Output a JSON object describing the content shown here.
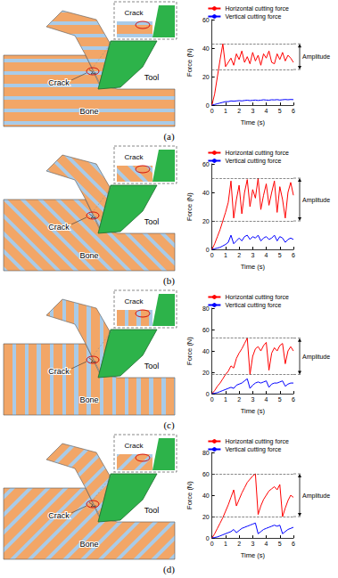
{
  "chart_data": [
    {
      "type": "line",
      "caption": "(a)",
      "diagram_labels": {
        "crack": "Crack",
        "inset_crack": "Crack",
        "tool": "Tool",
        "bone": "Bone"
      },
      "xlabel": "Time (s)",
      "ylabel": "Force (N)",
      "x": [
        0,
        0.2,
        0.4,
        0.6,
        0.8,
        1,
        1.2,
        1.4,
        1.6,
        1.8,
        2,
        2.2,
        2.4,
        2.6,
        2.8,
        3,
        3.2,
        3.4,
        3.6,
        3.8,
        4,
        4.2,
        4.4,
        4.6,
        4.8,
        5,
        5.2,
        5.4,
        5.6,
        5.8,
        6
      ],
      "series": [
        {
          "name": "Horizontal cutting force",
          "color": "#ff0000",
          "values": [
            0,
            8,
            20,
            32,
            43,
            27,
            30,
            33,
            28,
            36,
            32,
            38,
            30,
            34,
            29,
            37,
            31,
            35,
            28,
            36,
            33,
            38,
            30,
            29,
            36,
            32,
            37,
            31,
            35,
            33,
            30
          ]
        },
        {
          "name": "Vertical cutting force",
          "color": "#0000ff",
          "values": [
            0,
            0.5,
            1,
            1.5,
            2,
            2.5,
            2.5,
            3,
            2.8,
            3,
            3.2,
            3,
            3.3,
            3.5,
            3.2,
            3.4,
            3.6,
            3.3,
            3.5,
            3.8,
            3.6,
            3.5,
            3.8,
            3.7,
            3.9,
            3.6,
            3.8,
            4,
            3.8,
            4,
            3.9
          ]
        }
      ],
      "amplitude": {
        "text": "Amplitude",
        "range": [
          25,
          43
        ]
      },
      "xlim": [
        0,
        6
      ],
      "xticks": [
        0,
        1,
        2,
        3,
        4,
        5,
        6
      ],
      "ylim": [
        0,
        60
      ],
      "yticks": [
        0,
        20,
        40,
        60
      ],
      "legend": "upper right",
      "grid": false
    },
    {
      "type": "line",
      "caption": "(b)",
      "diagram_labels": {
        "crack": "Crack",
        "inset_crack": "Crack",
        "tool": "Tool",
        "bone": "Bone"
      },
      "xlabel": "Time (s)",
      "ylabel": "Force (N)",
      "x": [
        0,
        0.2,
        0.4,
        0.6,
        0.8,
        1,
        1.2,
        1.4,
        1.6,
        1.8,
        2,
        2.2,
        2.4,
        2.6,
        2.8,
        3,
        3.2,
        3.4,
        3.6,
        3.8,
        4,
        4.2,
        4.4,
        4.6,
        4.8,
        5,
        5.2,
        5.4,
        5.6,
        5.8,
        6
      ],
      "series": [
        {
          "name": "Horizontal cutting force",
          "color": "#ff0000",
          "values": [
            0,
            4,
            9,
            14,
            20,
            26,
            33,
            48,
            22,
            35,
            45,
            25,
            40,
            49,
            30,
            42,
            36,
            50,
            28,
            38,
            46,
            31,
            40,
            48,
            26,
            44,
            35,
            22,
            40,
            47,
            38
          ]
        },
        {
          "name": "Vertical cutting force",
          "color": "#0000ff",
          "values": [
            0,
            0.5,
            1,
            1.5,
            2.5,
            3.5,
            5,
            10,
            4,
            6,
            8,
            6,
            9,
            10,
            7,
            9,
            8,
            10,
            6,
            8,
            9,
            7,
            8,
            10,
            6,
            9,
            8,
            5,
            7,
            8,
            7
          ]
        }
      ],
      "amplitude": {
        "text": "Amplitude",
        "range": [
          20,
          50
        ]
      },
      "xlim": [
        0,
        6
      ],
      "xticks": [
        0,
        1,
        2,
        3,
        4,
        5,
        6
      ],
      "ylim": [
        0,
        60
      ],
      "yticks": [
        0,
        20,
        40,
        60
      ],
      "legend": "upper right",
      "grid": false
    },
    {
      "type": "line",
      "caption": "(c)",
      "diagram_labels": {
        "crack": "Crack",
        "inset_crack": "Crack",
        "tool": "Tool",
        "bone": "Bone"
      },
      "xlabel": "Time (s)",
      "ylabel": "Force (N)",
      "x": [
        0,
        0.2,
        0.4,
        0.6,
        0.8,
        1,
        1.2,
        1.4,
        1.6,
        1.8,
        2,
        2.2,
        2.4,
        2.6,
        2.8,
        3,
        3.2,
        3.4,
        3.6,
        3.8,
        4,
        4.2,
        4.4,
        4.6,
        4.8,
        5,
        5.2,
        5.4,
        5.6,
        5.8,
        6
      ],
      "series": [
        {
          "name": "Horizontal cutting force",
          "color": "#ff0000",
          "values": [
            0,
            3,
            7,
            10,
            14,
            18,
            21,
            26,
            24,
            33,
            38,
            42,
            47,
            52,
            18,
            35,
            42,
            44,
            40,
            45,
            48,
            22,
            38,
            43,
            40,
            45,
            47,
            28,
            40,
            44,
            40
          ]
        },
        {
          "name": "Vertical cutting force",
          "color": "#0000ff",
          "values": [
            0,
            0.5,
            1,
            2,
            3,
            4,
            5,
            6,
            5,
            8,
            9,
            10,
            12,
            14,
            5,
            8,
            10,
            11,
            10,
            11,
            12,
            6,
            9,
            10,
            10,
            11,
            12,
            7,
            9,
            10,
            10
          ]
        }
      ],
      "amplitude": {
        "text": "Amplitude",
        "range": [
          18,
          52
        ]
      },
      "xlim": [
        0,
        6
      ],
      "xticks": [
        0,
        1,
        2,
        3,
        4,
        5,
        6
      ],
      "ylim": [
        0,
        80
      ],
      "yticks": [
        0,
        20,
        40,
        60,
        80
      ],
      "legend": "upper right",
      "grid": false
    },
    {
      "type": "line",
      "caption": "(d)",
      "diagram_labels": {
        "crack": "Crack",
        "inset_crack": "Crack",
        "tool": "Tool",
        "bone": "Bone"
      },
      "xlabel": "Time (s)",
      "ylabel": "Force (N)",
      "x": [
        0,
        0.2,
        0.4,
        0.6,
        0.8,
        1,
        1.2,
        1.4,
        1.6,
        1.8,
        2,
        2.2,
        2.4,
        2.6,
        2.8,
        3,
        3.2,
        3.4,
        3.6,
        3.8,
        4,
        4.2,
        4.4,
        4.6,
        4.8,
        5,
        5.2,
        5.4,
        5.6,
        5.8,
        6
      ],
      "series": [
        {
          "name": "Horizontal cutting force",
          "color": "#ff0000",
          "values": [
            0,
            4,
            9,
            14,
            19,
            25,
            31,
            38,
            45,
            30,
            36,
            42,
            47,
            52,
            55,
            58,
            60,
            22,
            30,
            36,
            40,
            44,
            46,
            48,
            45,
            50,
            20,
            28,
            35,
            40,
            38
          ]
        },
        {
          "name": "Vertical cutting force",
          "color": "#0000ff",
          "values": [
            0,
            0.5,
            1,
            2,
            3,
            4,
            5,
            6,
            8,
            5,
            7,
            9,
            10,
            11,
            12,
            13,
            14,
            4,
            6,
            8,
            9,
            10,
            11,
            12,
            11,
            12,
            4,
            6,
            8,
            9,
            10
          ]
        }
      ],
      "amplitude": {
        "text": "Amplitude",
        "range": [
          20,
          60
        ]
      },
      "xlim": [
        0,
        6
      ],
      "xticks": [
        0,
        1,
        2,
        3,
        4,
        5,
        6
      ],
      "ylim": [
        0,
        80
      ],
      "yticks": [
        0,
        20,
        40,
        60,
        80
      ],
      "legend": "upper right",
      "grid": false
    }
  ]
}
